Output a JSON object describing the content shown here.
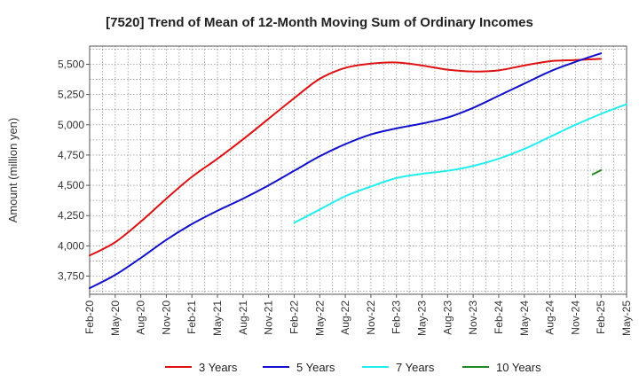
{
  "chart_data": {
    "type": "line",
    "title": "[7520]  Trend of Mean of 12-Month Moving Sum of Ordinary Incomes",
    "xlabel": "",
    "ylabel": "Amount (million yen)",
    "ylim": [
      3600,
      5650
    ],
    "yticks": [
      3750,
      4000,
      4250,
      4500,
      4750,
      5000,
      5250,
      5500
    ],
    "ytick_labels": [
      "3,750",
      "4,000",
      "4,250",
      "4,500",
      "4,750",
      "5,000",
      "5,250",
      "5,500"
    ],
    "x_categories": [
      "Feb-20",
      "May-20",
      "Aug-20",
      "Nov-20",
      "Feb-21",
      "May-21",
      "Aug-21",
      "Nov-21",
      "Feb-22",
      "May-22",
      "Aug-22",
      "Nov-22",
      "Feb-23",
      "May-23",
      "Aug-23",
      "Nov-23",
      "Feb-24",
      "May-24",
      "Aug-24",
      "Nov-24",
      "Feb-25",
      "May-25"
    ],
    "grid": true,
    "legend_position": "bottom",
    "series": [
      {
        "name": "3 Years",
        "color": "#dd1111",
        "start_index": 0,
        "values": [
          3920,
          4030,
          4200,
          4390,
          4570,
          4720,
          4880,
          5050,
          5220,
          5380,
          5470,
          5505,
          5515,
          5490,
          5455,
          5440,
          5450,
          5490,
          5525,
          5535,
          5545
        ]
      },
      {
        "name": "5 Years",
        "color": "#1111cc",
        "start_index": 0,
        "values": [
          3650,
          3760,
          3900,
          4050,
          4180,
          4290,
          4390,
          4500,
          4620,
          4740,
          4840,
          4920,
          4970,
          5010,
          5060,
          5140,
          5240,
          5340,
          5440,
          5520,
          5590
        ]
      },
      {
        "name": "7 Years",
        "color": "#22eeee",
        "start_index": 8,
        "values": [
          4190,
          4300,
          4410,
          4490,
          4560,
          4595,
          4620,
          4660,
          4720,
          4800,
          4900,
          5000,
          5090,
          5170
        ]
      },
      {
        "name": "10 Years",
        "color": "#228822",
        "start_index": 19.67,
        "values": [
          4590,
          4625
        ]
      }
    ]
  }
}
